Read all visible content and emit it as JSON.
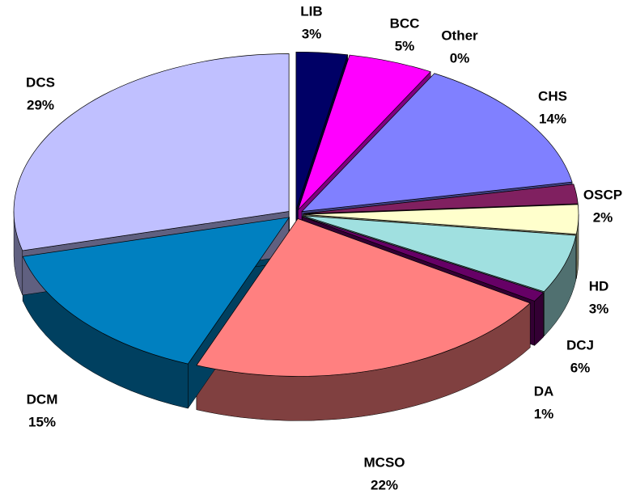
{
  "chart_data": {
    "type": "pie3d",
    "categories": [
      "LIB",
      "BCC",
      "Other",
      "CHS",
      "OSCP",
      "HD",
      "DCJ",
      "DA",
      "MCSO",
      "DCM",
      "DCS"
    ],
    "values": [
      3,
      5,
      0,
      14,
      2,
      3,
      6,
      1,
      22,
      15,
      29
    ],
    "value_labels": [
      "3%",
      "5%",
      "0%",
      "14%",
      "2%",
      "3%",
      "6%",
      "1%",
      "22%",
      "15%",
      "29%"
    ],
    "colors": [
      "#000066",
      "#ff00ff",
      "#ffff00",
      "#8080ff",
      "#802060",
      "#ffffcc",
      "#a0e0e0",
      "#660066",
      "#ff8080",
      "#0080c0",
      "#c0c0ff"
    ]
  }
}
